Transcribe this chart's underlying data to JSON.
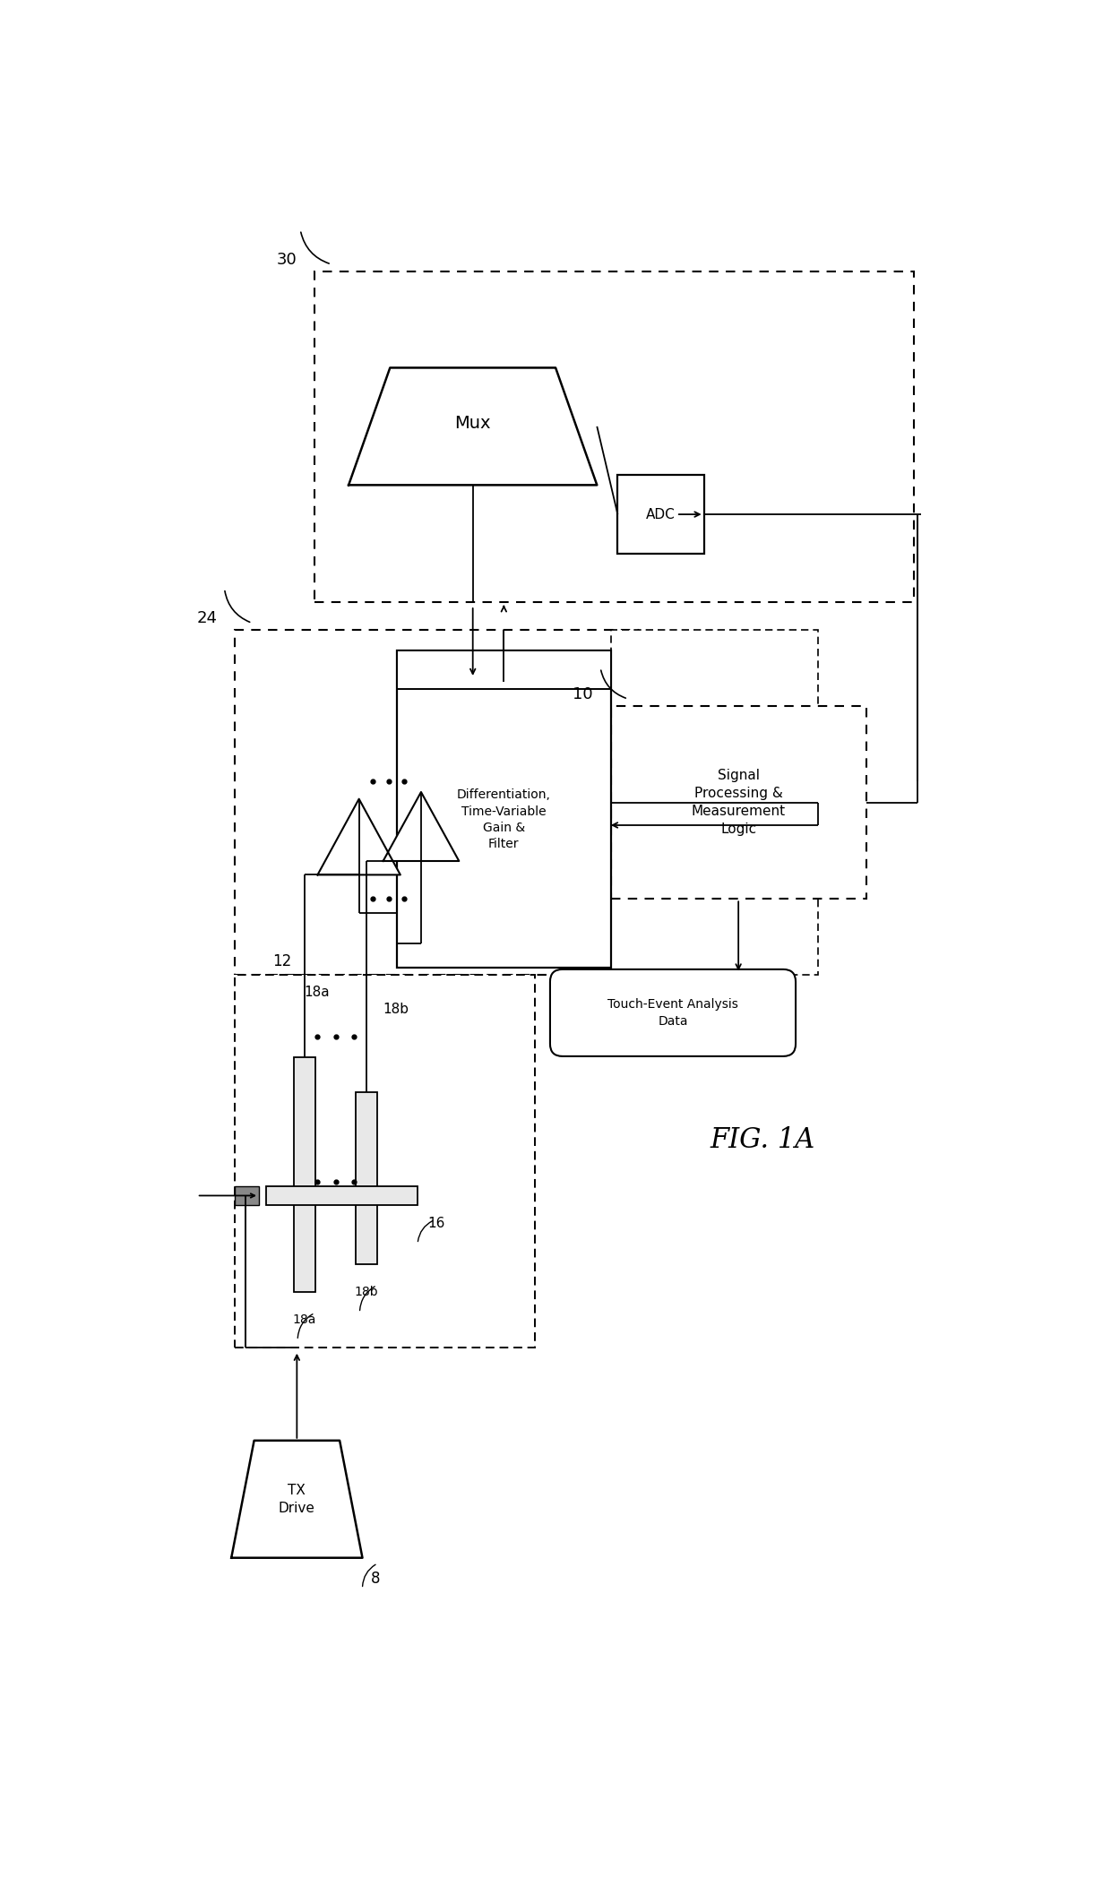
{
  "bg": "#ffffff",
  "lc": "#000000",
  "fig_label": "FIG. 1A",
  "mux_label": "Mux",
  "adc_label": "ADC",
  "diff_label": "Differentiation,\nTime-Variable\nGain &\nFilter",
  "signal_label": "Signal\nProcessing &\nMeasurement\nLogic",
  "touch_label": "Touch-Event Analysis\nData",
  "tx_label": "TX\nDrive",
  "r30": "30",
  "r24": "24",
  "r12": "12",
  "r10": "10",
  "r8": "8",
  "r18a_hi": "18a",
  "r18b_hi": "18b",
  "r18a_lo": "18a",
  "r18b_lo": "18b",
  "r16": "16"
}
